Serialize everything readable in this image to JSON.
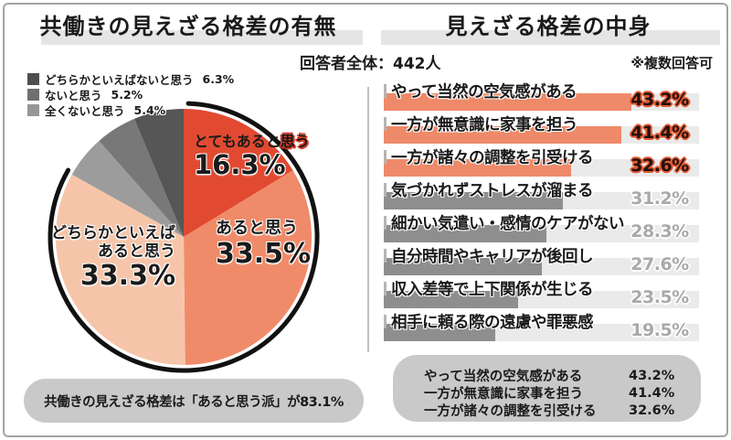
{
  "left_panel": {
    "title": "共働きの見えざる格差の有無",
    "legend": [
      {
        "label": "どちらかといえばないと思う",
        "value": "6.3%",
        "color": "#4e4e4e"
      },
      {
        "label": "ないと思う",
        "value": "5.2%",
        "color": "#707070"
      },
      {
        "label": "全くないと思う",
        "value": "5.4%",
        "color": "#969696"
      }
    ],
    "pie_labels": {
      "totemo_pre": "とてもあると",
      "totemo_hl": "思う",
      "totemo_pct": "16.3%",
      "aru": "あると思う",
      "aru_pct": "33.5%",
      "dochira_l1": "どちらかといえば",
      "dochira_l2": "あると思う",
      "dochira_pct": "33.3%"
    },
    "callout": "共働きの見えざる格差は「あると思う派」が83.1%"
  },
  "right_panel": {
    "title": "見えざる格差の中身",
    "respondents": "回答者全体：442人",
    "note": "※複数回答可",
    "summary": [
      {
        "label": "やって当然の空気感がある",
        "value": "43.2%"
      },
      {
        "label": "一方が無意識に家事を担う",
        "value": "41.4%"
      },
      {
        "label": "一方が諸々の調整を引受ける",
        "value": "32.6%"
      }
    ]
  },
  "chart_data": [
    {
      "type": "pie",
      "title": "共働きの見えざる格差の有無",
      "slices": [
        {
          "label": "とてもあると思う",
          "value": 16.3,
          "color": "#e14a31"
        },
        {
          "label": "あると思う",
          "value": 33.5,
          "color": "#f08b6a"
        },
        {
          "label": "どちらかといえばあると思う",
          "value": 33.3,
          "color": "#f6c5a9"
        },
        {
          "label": "全くないと思う",
          "value": 5.4,
          "color": "#9c9c9c"
        },
        {
          "label": "ないと思う",
          "value": 5.2,
          "color": "#787878"
        },
        {
          "label": "どちらかといえばないと思う",
          "value": 6.3,
          "color": "#565656"
        }
      ],
      "start_angle_deg": 0,
      "direction": "clockwise-from-top",
      "annotation": "共働きの見えざる格差は「あると思う派」が83.1%"
    },
    {
      "type": "bar",
      "orientation": "horizontal",
      "title": "見えざる格差の中身",
      "respondents": "回答者全体：442人",
      "note": "※複数回答可",
      "categories": [
        "やって当然の空気感がある",
        "一方が無意識に家事を担う",
        "一方が諸々の調整を引受ける",
        "気づかれずストレスが溜まる",
        "細かい気遣い・感情のケアがない",
        "自分時間やキャリアが後回し",
        "収入差等で上下関係が生じる",
        "相手に頼る際の遠慮や罪悪感"
      ],
      "values": [
        43.2,
        41.4,
        32.6,
        31.2,
        28.3,
        27.6,
        23.5,
        19.5
      ],
      "pct_labels": [
        "43.2%",
        "41.4%",
        "32.6%",
        "31.2%",
        "28.3%",
        "27.6%",
        "23.5%",
        "19.5%"
      ],
      "highlight_count": 3,
      "colors": {
        "highlight": "#ee8a69",
        "normal": "#8e8e8e",
        "track": "#eaeaea"
      },
      "xlim": [
        0,
        55
      ],
      "grid": false,
      "legend": "none"
    }
  ]
}
